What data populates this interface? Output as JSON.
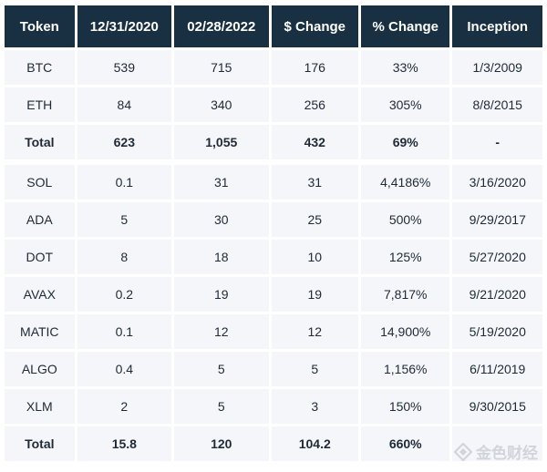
{
  "table": {
    "headers": [
      "Token",
      "12/31/2020",
      "02/28/2022",
      "$ Change",
      "% Change",
      "Inception"
    ],
    "group1": [
      [
        "BTC",
        "539",
        "715",
        "176",
        "33%",
        "1/3/2009"
      ],
      [
        "ETH",
        "84",
        "340",
        "256",
        "305%",
        "8/8/2015"
      ]
    ],
    "total1": [
      "Total",
      "623",
      "1,055",
      "432",
      "69%",
      "-"
    ],
    "group2": [
      [
        "SOL",
        "0.1",
        "31",
        "31",
        "4,4186%",
        "3/16/2020"
      ],
      [
        "ADA",
        "5",
        "30",
        "25",
        "500%",
        "9/29/2017"
      ],
      [
        "DOT",
        "8",
        "18",
        "10",
        "125%",
        "5/27/2020"
      ],
      [
        "AVAX",
        "0.2",
        "19",
        "19",
        "7,817%",
        "9/21/2020"
      ],
      [
        "MATIC",
        "0.1",
        "12",
        "12",
        "14,900%",
        "5/19/2020"
      ],
      [
        "ALGO",
        "0.4",
        "5",
        "5",
        "1,156%",
        "6/11/2019"
      ],
      [
        "XLM",
        "2",
        "5",
        "3",
        "150%",
        "9/30/2015"
      ]
    ],
    "total2": [
      "Total",
      "15.8",
      "120",
      "104.2",
      "660%",
      ""
    ]
  },
  "watermark": {
    "text": "金色财经",
    "icon": "jinse-logo-icon",
    "color": "#d1d4d9"
  }
}
